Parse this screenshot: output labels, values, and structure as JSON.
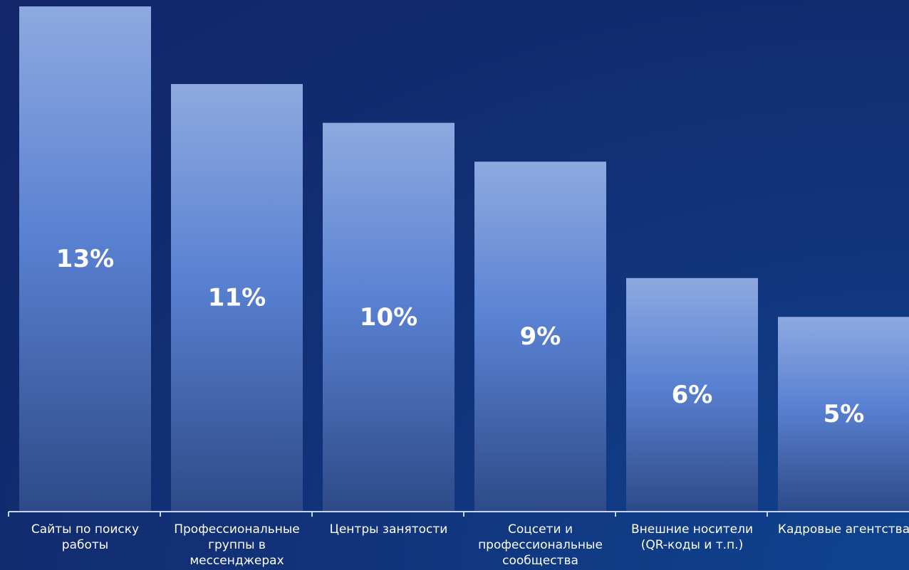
{
  "chart_data": {
    "type": "bar",
    "categories": [
      "Сайты по поиску работы",
      "Профессиональные группы в мессенджерах",
      "Центры занятости",
      "Соцсети и профессиональные сообщества",
      "Внешние носители (QR-коды и т.п.)",
      "Кадровые агентства"
    ],
    "category_lines": [
      "Сайты по поиску\nработы",
      "Профессиональные\nгруппы в\nмессенджерах",
      "Центры занятости",
      "Соцсети и\nпрофессиональные\nсообщества",
      "Внешние носители\n(QR-коды и т.п.)",
      "Кадровые агентства"
    ],
    "values": [
      13,
      11,
      10,
      9,
      6,
      5
    ],
    "value_labels": [
      "13%",
      "11%",
      "10%",
      "9%",
      "6%",
      "5%"
    ],
    "title": "",
    "xlabel": "",
    "ylabel": "",
    "ylim": [
      0,
      13
    ],
    "grid": false,
    "legend": "none",
    "colors": {
      "bar_top": "#8ea9df",
      "bar_mid": "#5a82d3",
      "bar_bottom": "#2e4a88",
      "axis": "#c8d3ea",
      "text": "#ffffff"
    }
  }
}
